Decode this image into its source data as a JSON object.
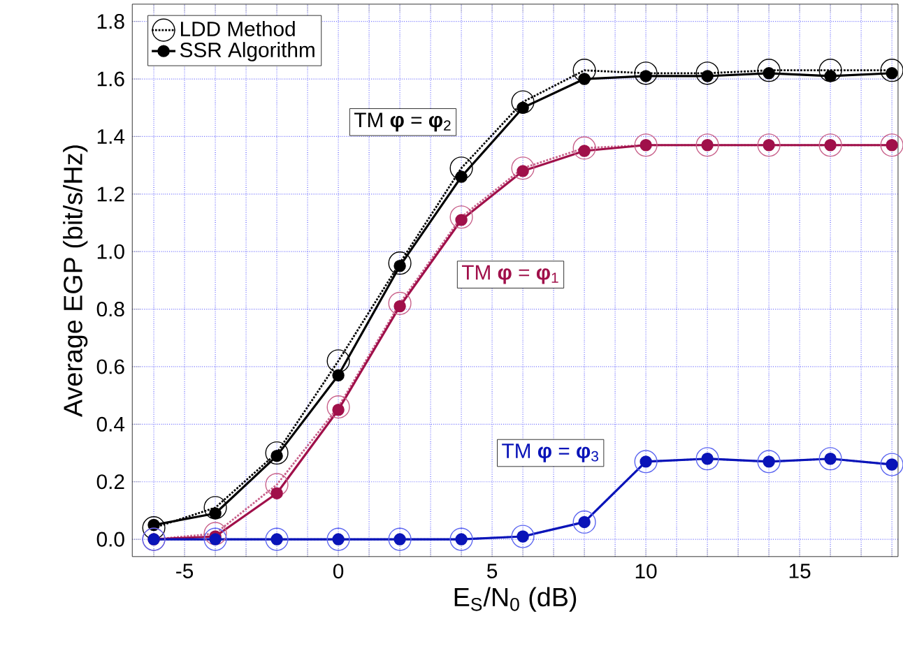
{
  "chart_data": {
    "type": "line",
    "xlabel": "E$_{S}$/N$_{0}$ (dB)",
    "ylabel": "Average EGP (bit/s/Hz)",
    "x": [
      -6,
      -4,
      -2,
      0,
      2,
      4,
      6,
      8,
      10,
      12,
      14,
      16,
      18
    ],
    "series": [
      {
        "name": "LDD Method",
        "color": "#000000",
        "marker": "circle",
        "line_style": "dotted",
        "values": [
          0.04,
          0.11,
          0.3,
          0.62,
          0.96,
          1.29,
          1.52,
          1.63,
          1.62,
          1.62,
          1.63,
          1.63,
          1.63
        ]
      },
      {
        "name": "SSR Algorithm",
        "color": "#000000",
        "marker": "circle",
        "line_style": "solid",
        "values": [
          0.05,
          0.09,
          0.29,
          0.57,
          0.95,
          1.26,
          1.5,
          1.6,
          1.61,
          1.61,
          1.62,
          1.61,
          1.62
        ]
      },
      {
        "color": "#c8608a",
        "marker": "circle",
        "line_style": "dotted",
        "values": [
          0.0,
          0.02,
          0.19,
          0.46,
          0.82,
          1.12,
          1.29,
          1.36,
          1.37,
          1.37,
          1.37,
          1.37,
          1.37
        ]
      },
      {
        "color": "#a0104a",
        "marker": "circle",
        "line_style": "solid",
        "values": [
          0.0,
          0.01,
          0.16,
          0.45,
          0.81,
          1.11,
          1.28,
          1.35,
          1.37,
          1.37,
          1.37,
          1.37,
          1.37
        ]
      },
      {
        "color": "#5a64f0",
        "marker": "circle",
        "line_style": "dotted",
        "values": [
          0.0,
          0.0,
          0.0,
          0.0,
          0.0,
          0.0,
          0.01,
          0.06,
          0.27,
          0.28,
          0.27,
          0.28,
          0.26
        ]
      },
      {
        "color": "#0a14b8",
        "marker": "circle",
        "line_style": "solid",
        "values": [
          0.0,
          0.0,
          0.0,
          0.0,
          0.0,
          0.0,
          0.01,
          0.06,
          0.27,
          0.28,
          0.27,
          0.28,
          0.26
        ]
      }
    ],
    "annotations": [
      "TM **φ** = **φ**$_{2}$",
      "TM **φ** = **φ**$_{1}$",
      "TM **φ** = **φ**$_{3}$"
    ],
    "xlim": [
      -6.7,
      18.2
    ],
    "ylim": [
      -0.06,
      1.86
    ],
    "xticks": [
      {
        "value": -6,
        "label": null
      },
      -5,
      {
        "value": -4,
        "label": null
      },
      {
        "value": -3,
        "label": null
      },
      {
        "value": -2,
        "label": null
      },
      {
        "value": -1,
        "label": null
      },
      0,
      {
        "value": 1,
        "label": null
      },
      {
        "value": 2,
        "label": null
      },
      {
        "value": 3,
        "label": null
      },
      {
        "value": 4,
        "label": null
      },
      5,
      {
        "value": 6,
        "label": null
      },
      {
        "value": 7,
        "label": null
      },
      {
        "value": 8,
        "label": null
      },
      {
        "value": 9,
        "label": null
      },
      10,
      {
        "value": 11,
        "label": null
      },
      {
        "value": 12,
        "label": null
      },
      {
        "value": 13,
        "label": null
      },
      {
        "value": 14,
        "label": null
      },
      15,
      {
        "value": 16,
        "label": null
      },
      {
        "value": 17,
        "label": null
      },
      {
        "value": 18,
        "label": null
      }
    ],
    "yticks": [
      {
        "value": 0,
        "label": "0.0"
      },
      0.2,
      0.4,
      0.6,
      0.8,
      {
        "value": 1,
        "label": "1.0"
      },
      1.2,
      1.4,
      1.6,
      1.8
    ],
    "grid": true,
    "legend": "top left"
  }
}
